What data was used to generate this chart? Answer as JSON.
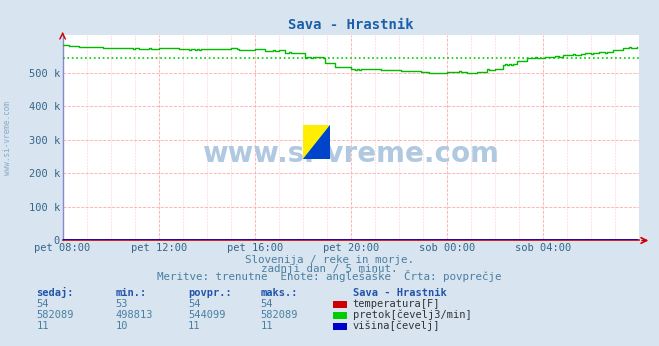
{
  "title": "Sava - Hrastnik",
  "title_color": "#1a5fa8",
  "bg_color": "#d8e4f0",
  "plot_bg_color": "#ffffff",
  "grid_color": "#ffaaaa",
  "xmin": 0,
  "xmax": 288,
  "ymin": 0,
  "ymax": 614000,
  "yticks": [
    0,
    100000,
    200000,
    300000,
    400000,
    500000
  ],
  "ytick_labels": [
    "0",
    "100 k",
    "200 k",
    "300 k",
    "400 k",
    "500 k"
  ],
  "xtick_positions": [
    0,
    48,
    96,
    144,
    192,
    240
  ],
  "xtick_labels": [
    "pet 08:00",
    "pet 12:00",
    "pet 16:00",
    "pet 20:00",
    "sob 00:00",
    "sob 04:00"
  ],
  "watermark": "www.si-vreme.com",
  "watermark_color": "#b0c8e0",
  "subtitle1": "Slovenija / reke in morje.",
  "subtitle2": "zadnji dan / 5 minut.",
  "subtitle3": "Meritve: trenutne  Enote: anglešaške  Črta: povprečje",
  "subtitle_color": "#4a7fa0",
  "table_header": "Sava - Hrastnik",
  "table_cols": [
    "sedaj:",
    "min.:",
    "povpr.:",
    "maks.:"
  ],
  "table_data": [
    [
      54,
      53,
      54,
      54
    ],
    [
      582089,
      498813,
      544099,
      582089
    ],
    [
      11,
      10,
      11,
      11
    ]
  ],
  "legend_labels": [
    "temperatura[F]",
    "pretok[čevelj3/min]",
    "višina[čevelj]"
  ],
  "legend_colors": [
    "#cc0000",
    "#00cc00",
    "#0000cc"
  ],
  "line_color_temp": "#cc0000",
  "line_color_flow": "#00bb00",
  "line_color_height": "#0000cc",
  "avg_line_color": "#00cc00",
  "avg_line_value": 544099,
  "flow_min": 498813,
  "flow_max": 582089,
  "temp_value": 54,
  "height_value": 11,
  "n_points": 288,
  "left_label": "www.si-vreme.com",
  "left_label_color": "#88aac8"
}
